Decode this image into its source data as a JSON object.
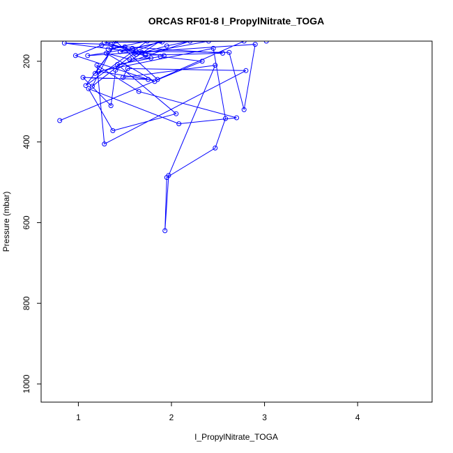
{
  "chart_data": {
    "type": "line",
    "title": "ORCAS RF01-8 I_PropylNitrate_TOGA",
    "xlabel": "I_PropylNitrate_TOGA",
    "ylabel": "Pressure (mbar)",
    "xlim": [
      0.6,
      4.8
    ],
    "ylim": [
      1045,
      150
    ],
    "y_inverted": true,
    "x_ticks": [
      1,
      2,
      3,
      4
    ],
    "y_ticks": [
      200,
      400,
      600,
      800,
      1000
    ],
    "grid": false,
    "legend": "none",
    "colors": {
      "series": "#0000ff",
      "axes": "#000000"
    },
    "series": [
      {
        "markers": "open-circle",
        "x": [
          0.8,
          2.33,
          1.88,
          1.42,
          2.05,
          1.37,
          1.11,
          2.08,
          2.7,
          1.65,
          1.2,
          1.28,
          2.8,
          1.53,
          1.48,
          2.47,
          1.97,
          1.93,
          1.95,
          2.47,
          2.58,
          2.45,
          1.22,
          1.75,
          1.05,
          1.35,
          1.4,
          1.88,
          1.62,
          2.62,
          2.78,
          2.9,
          1.1,
          1.58,
          1.9,
          1.45,
          1.72,
          2.55,
          1.25,
          0.97,
          1.82,
          1.3,
          1.55,
          1.78,
          1.35,
          0.85,
          1.92,
          1.68,
          1.28,
          2.78,
          1.85,
          1.4,
          1.15,
          1.6,
          1.5,
          1.32,
          1.74,
          1.08,
          1.38,
          1.18,
          2.2,
          1.95,
          1.62,
          2.4,
          3.02
        ],
        "y": [
          347,
          200,
          188,
          208,
          330,
          372,
          268,
          355,
          340,
          275,
          210,
          405,
          223,
          218,
          240,
          210,
          483,
          620,
          488,
          415,
          342,
          168,
          225,
          245,
          240,
          310,
          222,
          150,
          175,
          178,
          320,
          158,
          186,
          168,
          152,
          176,
          185,
          180,
          160,
          186,
          250,
          180,
          195,
          192,
          158,
          155,
          186,
          178,
          153,
          150,
          245,
          150,
          262,
          180,
          164,
          170,
          150,
          260,
          165,
          230,
          150,
          162,
          183,
          150,
          150
        ]
      }
    ]
  }
}
